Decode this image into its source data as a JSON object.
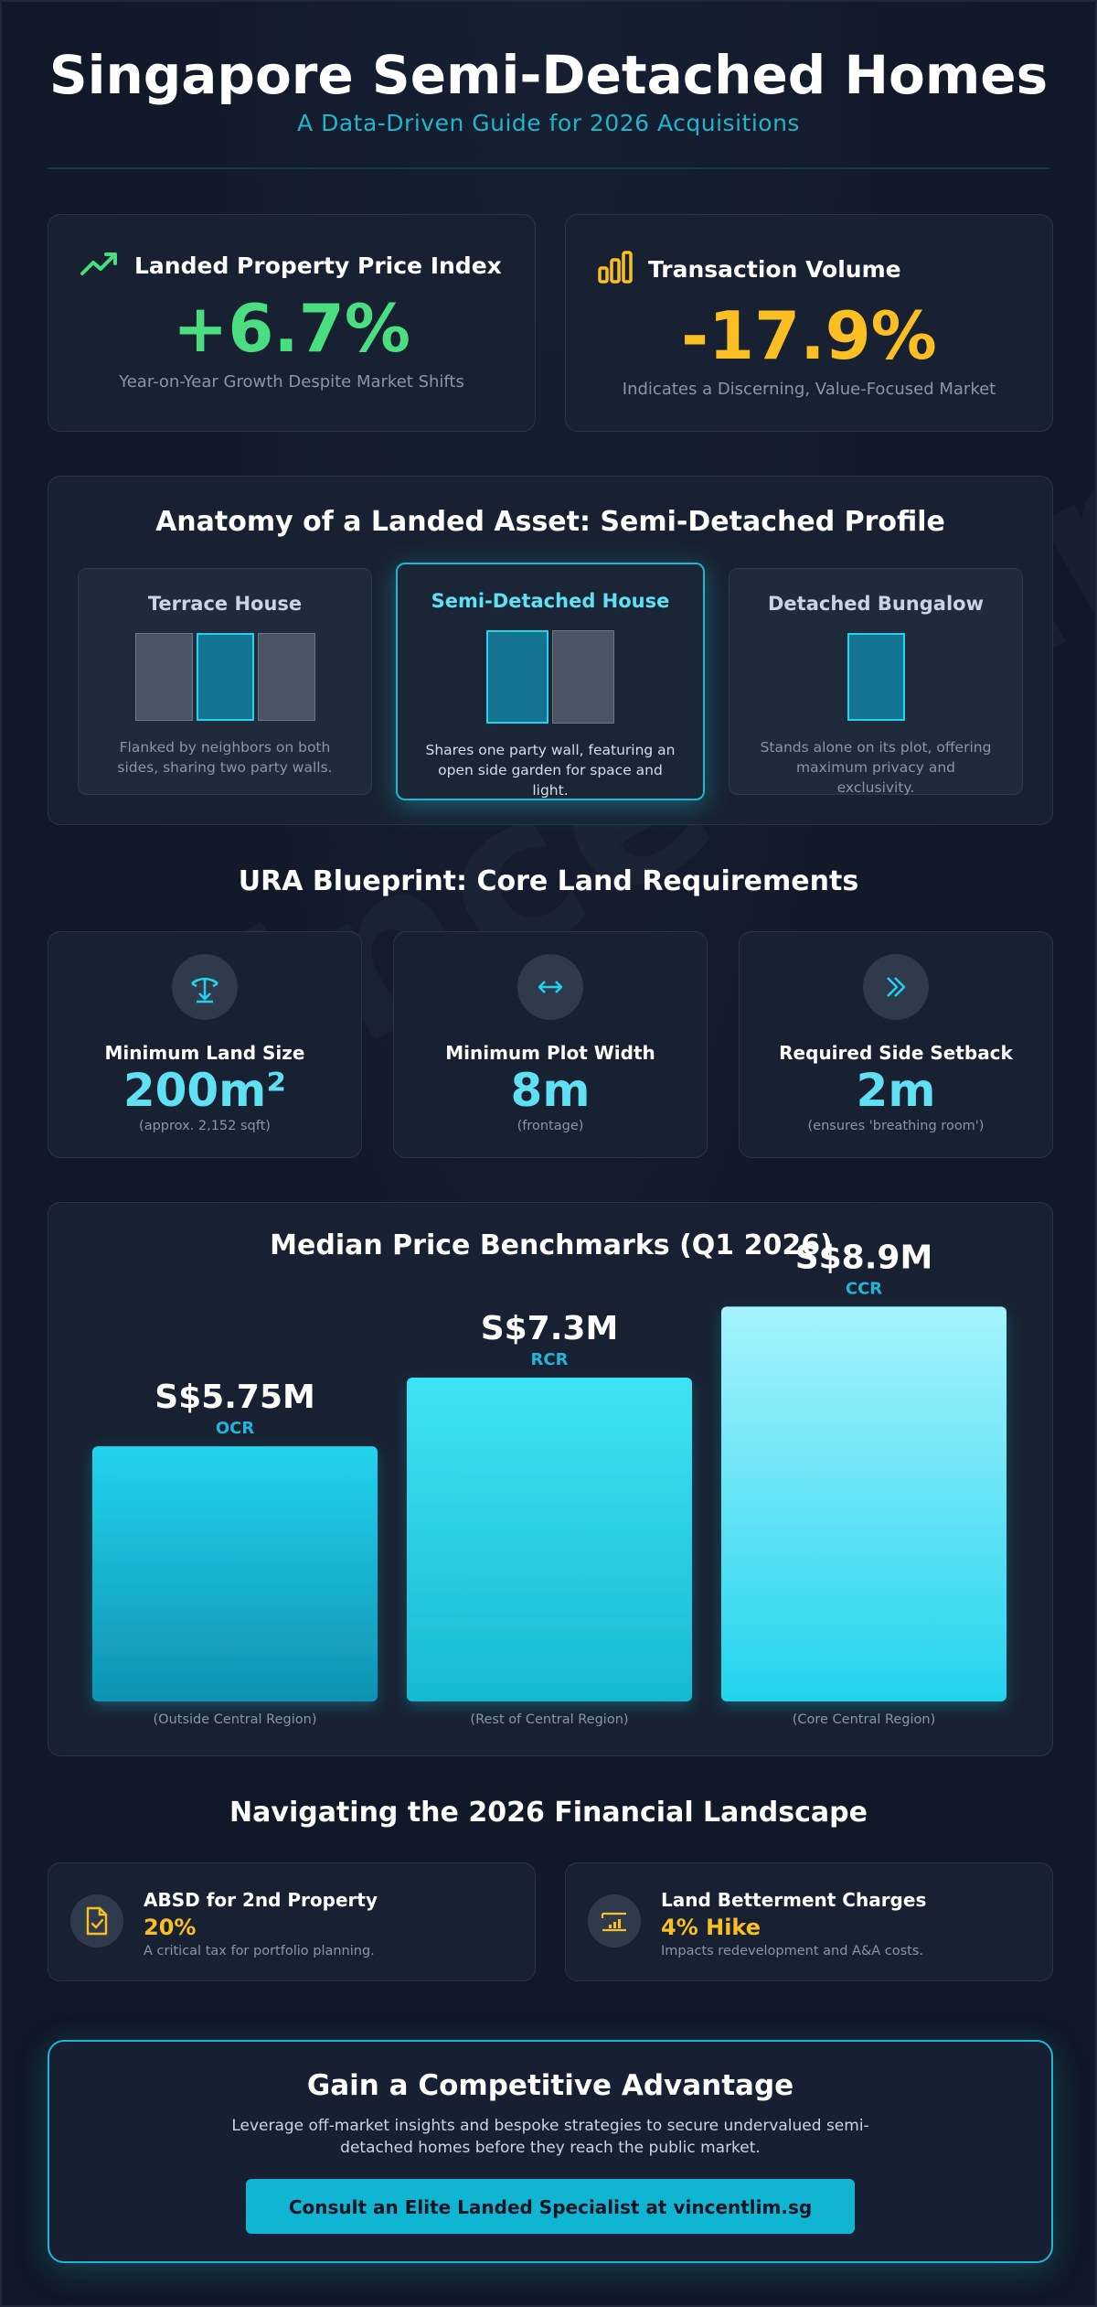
{
  "header": {
    "title": "Singapore Semi-Detached Homes",
    "subtitle": "A Data-Driven Guide for 2026 Acquisitions"
  },
  "watermark": "vincentlim.sg",
  "stats": [
    {
      "title": "Landed Property Price Index",
      "value": "+6.7%",
      "note": "Year-on-Year Growth Despite Market Shifts",
      "icon": "trending-up-icon",
      "color": "#4ade80"
    },
    {
      "title": "Transaction Volume",
      "value": "-17.9%",
      "note": "Indicates a Discerning, Value-Focused Market",
      "icon": "bar-chart-icon",
      "color": "#fbbf24"
    }
  ],
  "anatomy": {
    "title": "Anatomy of a Landed Asset: Semi-Detached Profile",
    "types": [
      {
        "name": "Terrace House",
        "desc": "Flanked by neighbors on both sides, sharing two party walls."
      },
      {
        "name": "Semi-Detached House",
        "desc": "Shares one party wall, featuring an open side garden for space and light."
      },
      {
        "name": "Detached Bungalow",
        "desc": "Stands alone on its plot, offering maximum privacy and exclusivity."
      }
    ]
  },
  "ura": {
    "title": "URA Blueprint: Core Land Requirements",
    "items": [
      {
        "label": "Minimum Land Size",
        "value": "200m²",
        "note": "(approx. 2,152 sqft)",
        "icon": "land-area-icon"
      },
      {
        "label": "Minimum Plot Width",
        "value": "8m",
        "note": "(frontage)",
        "icon": "width-arrows-icon"
      },
      {
        "label": "Required Side Setback",
        "value": "2m",
        "note": "(ensures 'breathing room')",
        "icon": "double-chevron-icon"
      }
    ]
  },
  "benchmarks": {
    "title": "Median Price Benchmarks (Q1 2026)"
  },
  "chart_data": {
    "type": "bar",
    "title": "Median Price Benchmarks (Q1 2026)",
    "categories": [
      "OCR",
      "RCR",
      "CCR"
    ],
    "category_descriptions": [
      "(Outside Central Region)",
      "(Rest of Central Region)",
      "(Core Central Region)"
    ],
    "values": [
      5.75,
      7.3,
      8.9
    ],
    "value_labels": [
      "S$5.75M",
      "S$7.3M",
      "S$8.9M"
    ],
    "unit": "S$M",
    "xlabel": "",
    "ylabel": "",
    "ylim": [
      0,
      10
    ],
    "grid": false,
    "legend": "none",
    "colors": [
      "#22d3ee",
      "#a5f3fc"
    ]
  },
  "finance": {
    "title": "Navigating the 2026 Financial Landscape",
    "items": [
      {
        "label": "ABSD for 2nd Property",
        "value": "20%",
        "note": "A critical tax for portfolio planning.",
        "icon": "document-check-icon"
      },
      {
        "label": "Land Betterment Charges",
        "value": "4% Hike",
        "note": "Impacts redevelopment and A&A costs.",
        "icon": "growth-chart-icon"
      }
    ]
  },
  "cta": {
    "title": "Gain a Competitive Advantage",
    "text": "Leverage off-market insights and bespoke strategies to secure undervalued semi-detached homes before they reach the public market.",
    "button": "Consult an Elite Landed Specialist at vincentlim.sg"
  },
  "colors": {
    "background": "#111827",
    "card": "#182131",
    "accent": "#22d3ee",
    "positive": "#4ade80",
    "warning": "#fbbf24"
  }
}
